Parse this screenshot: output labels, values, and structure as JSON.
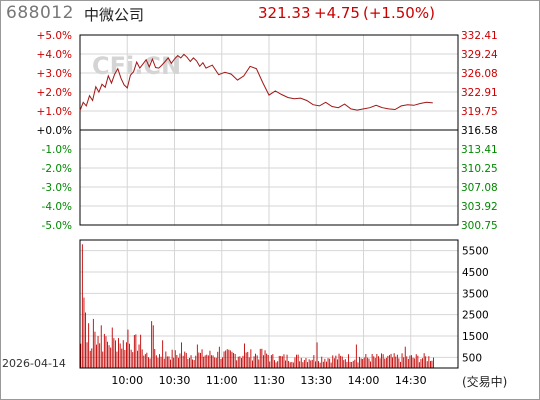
{
  "header": {
    "code": "688012",
    "name": "中微公司",
    "price": "321.33",
    "change": "+4.75",
    "change_pct": "(+1.50%)"
  },
  "watermark": "CFi.CN",
  "date": "2026-04-14",
  "volume_unit": "(交易中)",
  "colors": {
    "up": "#cc0000",
    "down": "#008800",
    "neutral": "#000000",
    "grid": "#d6d6d6"
  },
  "chart_data": [
    {
      "type": "line",
      "name": "intraday-price",
      "title": "",
      "base_price": 316.58,
      "ylim": [
        300.75,
        332.41
      ],
      "pct_labels": [
        "+5.0%",
        "+4.0%",
        "+3.0%",
        "+2.0%",
        "+1.0%",
        "+0.0%",
        "-1.0%",
        "-2.0%",
        "-3.0%",
        "-4.0%",
        "-5.0%"
      ],
      "price_labels": [
        "332.41",
        "329.24",
        "326.08",
        "322.91",
        "319.75",
        "316.58",
        "313.41",
        "310.25",
        "307.08",
        "303.92",
        "300.75"
      ],
      "x_ticks": [
        "10:00",
        "10:30",
        "11:00",
        "11:30",
        "13:30",
        "14:00",
        "14:30"
      ],
      "minutes_total": 240,
      "series": [
        {
          "minute": [
            0,
            2,
            4,
            6,
            8,
            10,
            12,
            14,
            16,
            18,
            20,
            22,
            24,
            26,
            28,
            30,
            32,
            34,
            36,
            38,
            40,
            42,
            44,
            46,
            48,
            50,
            52,
            54,
            56,
            58,
            60,
            62,
            64,
            66,
            68,
            70,
            72,
            74,
            76,
            78,
            80,
            84,
            88,
            92,
            96,
            100,
            104,
            108,
            112,
            116,
            120,
            124,
            128,
            132,
            136,
            140,
            144,
            148,
            152,
            156,
            160,
            164,
            168,
            172,
            176,
            180,
            184,
            188,
            192,
            196,
            200,
            204,
            208,
            212,
            216,
            220,
            224
          ],
          "price": [
            319.8,
            321.2,
            320.6,
            322.3,
            321.5,
            323.8,
            322.9,
            324.2,
            323.7,
            325.6,
            324.4,
            325.9,
            326.8,
            325.2,
            324.1,
            323.6,
            325.7,
            326.3,
            327.9,
            326.9,
            327.6,
            328.3,
            327.1,
            328.4,
            327.0,
            326.9,
            327.4,
            328.0,
            328.6,
            327.7,
            328.4,
            329.0,
            328.6,
            329.2,
            328.7,
            328.0,
            328.6,
            328.1,
            327.2,
            327.8,
            326.9,
            327.4,
            325.8,
            326.2,
            325.9,
            324.9,
            325.6,
            327.2,
            326.8,
            324.5,
            322.4,
            323.1,
            322.5,
            322.0,
            321.8,
            321.9,
            321.5,
            320.8,
            320.6,
            321.2,
            320.5,
            320.3,
            320.9,
            320.1,
            319.9,
            320.1,
            320.3,
            320.7,
            320.3,
            320.1,
            320.0,
            320.6,
            320.8,
            320.7,
            321.0,
            321.2,
            321.1
          ]
        }
      ]
    },
    {
      "type": "bar",
      "name": "volume",
      "title": "",
      "ylim": [
        0,
        6000
      ],
      "y_labels": [
        "5500",
        "4500",
        "3500",
        "2500",
        "1500",
        "500"
      ],
      "y_label_values": [
        5500,
        4500,
        3500,
        2500,
        1500,
        500
      ],
      "spikes": [
        {
          "minute": 1,
          "value": 5800
        },
        {
          "minute": 2,
          "value": 3300
        },
        {
          "minute": 3,
          "value": 2600
        },
        {
          "minute": 5,
          "value": 2100
        },
        {
          "minute": 8,
          "value": 2300
        },
        {
          "minute": 9,
          "value": 1700
        },
        {
          "minute": 11,
          "value": 1500
        },
        {
          "minute": 13,
          "value": 2000
        },
        {
          "minute": 15,
          "value": 1600
        },
        {
          "minute": 20,
          "value": 1900
        },
        {
          "minute": 24,
          "value": 1400
        },
        {
          "minute": 30,
          "value": 1800
        },
        {
          "minute": 45,
          "value": 2200
        },
        {
          "minute": 46,
          "value": 2000
        },
        {
          "minute": 52,
          "value": 1300
        },
        {
          "minute": 64,
          "value": 1200
        },
        {
          "minute": 74,
          "value": 1100
        },
        {
          "minute": 88,
          "value": 1000
        },
        {
          "minute": 104,
          "value": 1150
        },
        {
          "minute": 115,
          "value": 900
        },
        {
          "minute": 150,
          "value": 1200
        },
        {
          "minute": 175,
          "value": 1100
        },
        {
          "minute": 206,
          "value": 1000
        }
      ]
    }
  ]
}
